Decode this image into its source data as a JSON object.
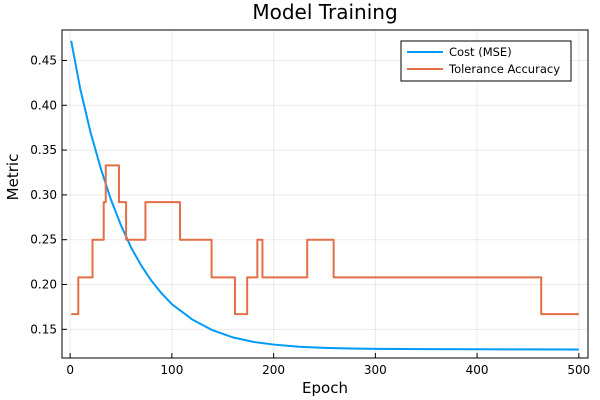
{
  "chart_data": {
    "type": "line",
    "title": "Model Training",
    "xlabel": "Epoch",
    "ylabel": "Metric",
    "xlim": [
      -8,
      509
    ],
    "ylim": [
      0.118,
      0.484
    ],
    "xticks": [
      0,
      100,
      200,
      300,
      400,
      500
    ],
    "yticks": [
      0.15,
      0.2,
      0.25,
      0.3,
      0.35,
      0.4,
      0.45
    ],
    "xtick_labels": [
      "0",
      "100",
      "200",
      "300",
      "400",
      "500"
    ],
    "ytick_labels": [
      "0.15",
      "0.20",
      "0.25",
      "0.30",
      "0.35",
      "0.40",
      "0.45"
    ],
    "grid": true,
    "legend_position": "top-right",
    "series": [
      {
        "name": "Cost (MSE)",
        "color": "#009af9",
        "x": [
          1,
          10,
          20,
          30,
          40,
          50,
          60,
          70,
          80,
          90,
          100,
          120,
          140,
          160,
          180,
          200,
          225,
          250,
          275,
          300,
          350,
          400,
          450,
          500
        ],
        "y": [
          0.472,
          0.418,
          0.37,
          0.33,
          0.295,
          0.266,
          0.241,
          0.221,
          0.204,
          0.19,
          0.178,
          0.161,
          0.149,
          0.141,
          0.136,
          0.133,
          0.1305,
          0.1293,
          0.1286,
          0.1282,
          0.1279,
          0.1277,
          0.1276,
          0.1275
        ]
      },
      {
        "name": "Tolerance Accuracy",
        "color": "#e26f46",
        "step": true,
        "x": [
          1,
          8,
          22,
          33,
          35,
          48,
          50,
          55,
          74,
          108,
          139,
          162,
          174,
          184,
          186,
          189,
          233,
          259,
          463,
          500
        ],
        "y": [
          0.167,
          0.208,
          0.25,
          0.292,
          0.333,
          0.292,
          0.292,
          0.25,
          0.292,
          0.25,
          0.208,
          0.167,
          0.208,
          0.25,
          0.25,
          0.208,
          0.25,
          0.208,
          0.167,
          0.167
        ]
      }
    ]
  }
}
